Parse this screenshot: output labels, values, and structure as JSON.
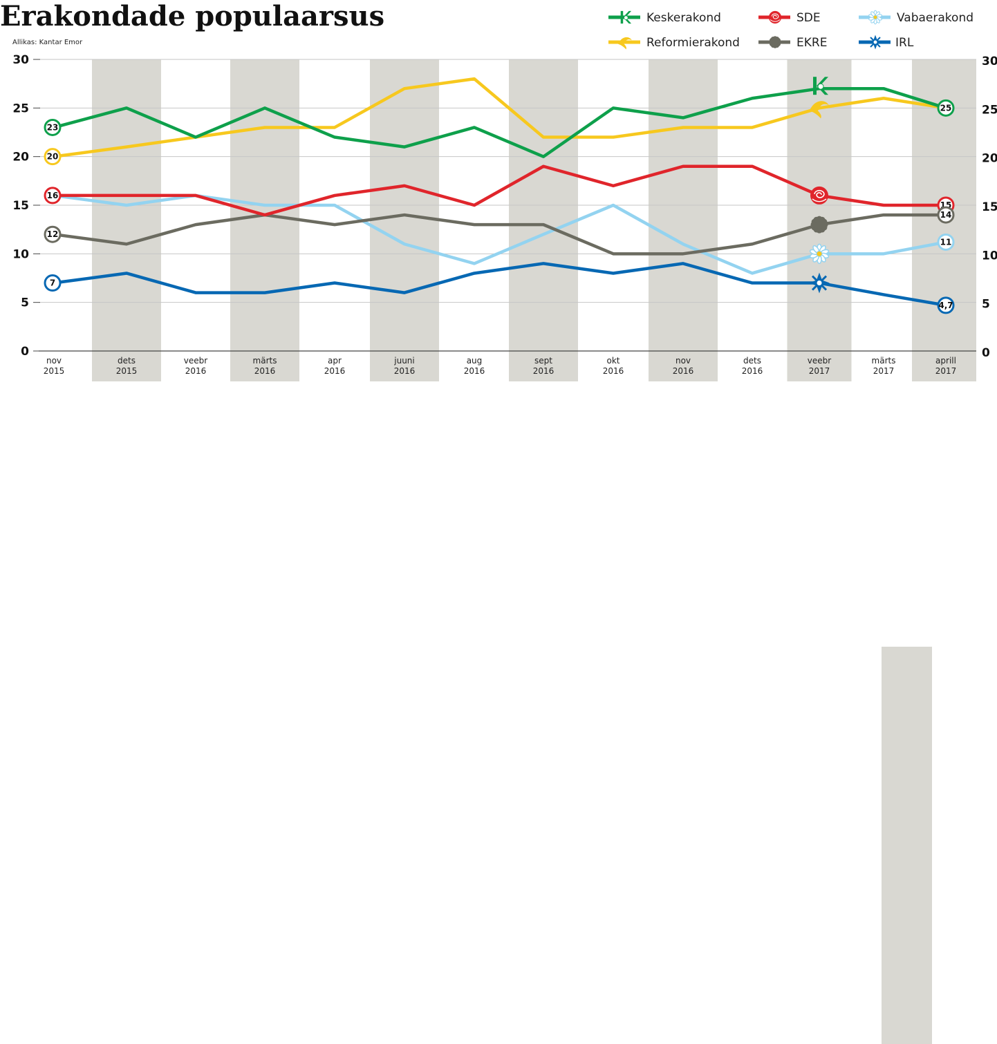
{
  "title": "Erakondade populaarsus",
  "source": "Allikas: Kantar Emor",
  "colors": {
    "band": "#d9d8d2",
    "grid": "#c6c6c6",
    "axis": "#444444"
  },
  "chart_data": {
    "type": "line",
    "title": "Erakondade populaarsus",
    "xlabel": "",
    "ylabel": "",
    "ylim": [
      0,
      30
    ],
    "yticks": [
      0,
      5,
      10,
      15,
      20,
      25,
      30
    ],
    "grid": true,
    "legend": "top-right",
    "categories": [
      [
        "nov",
        "2015"
      ],
      [
        "dets",
        "2015"
      ],
      [
        "veebr",
        "2016"
      ],
      [
        "märts",
        "2016"
      ],
      [
        "apr",
        "2016"
      ],
      [
        "juuni",
        "2016"
      ],
      [
        "aug",
        "2016"
      ],
      [
        "sept",
        "2016"
      ],
      [
        "okt",
        "2016"
      ],
      [
        "nov",
        "2016"
      ],
      [
        "dets",
        "2016"
      ],
      [
        "veebr",
        "2017"
      ],
      [
        "märts",
        "2017"
      ],
      [
        "aprill",
        "2017"
      ]
    ],
    "shaded_categories": [
      1,
      3,
      5,
      7,
      9,
      11,
      13
    ],
    "series": [
      {
        "name": "Keskerakond",
        "color": "#0ea04b",
        "icon": "k-logo-icon",
        "values": [
          23,
          25,
          22,
          25,
          22,
          21,
          23,
          20,
          25,
          24,
          26,
          27,
          27,
          25
        ],
        "start_label": "23",
        "end_label": "25"
      },
      {
        "name": "Reformierakond",
        "color": "#f7c81e",
        "icon": "squirrel-icon",
        "values": [
          20,
          21,
          22,
          23,
          23,
          27,
          28,
          22,
          22,
          23,
          23,
          25,
          26,
          25
        ],
        "start_label": "20",
        "end_label": ""
      },
      {
        "name": "SDE",
        "color": "#e0252b",
        "icon": "rose-icon",
        "values": [
          16,
          16,
          16,
          14,
          16,
          17,
          15,
          19,
          17,
          19,
          19,
          16,
          15,
          15
        ],
        "start_label": "16",
        "end_label": "15"
      },
      {
        "name": "EKRE",
        "color": "#6b6b60",
        "icon": "cornflower-icon",
        "values": [
          12,
          11,
          13,
          14,
          13,
          14,
          13,
          13,
          10,
          10,
          11,
          13,
          14,
          14
        ],
        "start_label": "12",
        "end_label": "14"
      },
      {
        "name": "Vabaerakond",
        "color": "#93d3f0",
        "icon": "edelweiss-icon",
        "values": [
          16,
          15,
          16,
          15,
          15,
          11,
          9,
          12,
          15,
          11,
          8,
          10,
          10,
          11.2
        ],
        "start_label": "",
        "end_label": "11"
      },
      {
        "name": "IRL",
        "color": "#0768b3",
        "icon": "star-cross-icon",
        "values": [
          7,
          8,
          6,
          6,
          7,
          6,
          8,
          9,
          8,
          9,
          7,
          7,
          5.8,
          4.7
        ],
        "start_label": "7",
        "end_label": "4,7"
      }
    ],
    "legend_order": [
      "Keskerakond",
      "SDE",
      "Vabaerakond",
      "Reformierakond",
      "EKRE",
      "IRL"
    ]
  }
}
